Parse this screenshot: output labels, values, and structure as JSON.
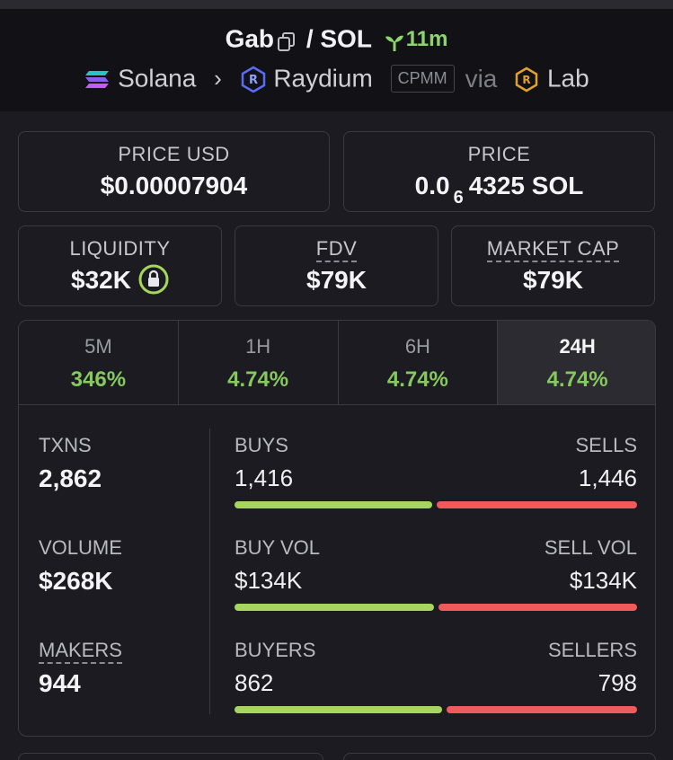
{
  "header": {
    "base_token": "Gab",
    "separator": "/",
    "quote_token": "SOL",
    "age": "11m",
    "chain": "Solana",
    "dex": "Raydium",
    "pool_type": "CPMM",
    "via": "via",
    "launchpad": "Lab"
  },
  "cards": {
    "price_usd_label": "PRICE USD",
    "price_usd_value": "$0.00007904",
    "price_label": "PRICE",
    "price_prefix": "0.0",
    "price_zeros": "6",
    "price_suffix": "4325 SOL",
    "liquidity_label": "LIQUIDITY",
    "liquidity_value": "$32K",
    "fdv_label": "FDV",
    "fdv_value": "$79K",
    "mcap_label": "MARKET CAP",
    "mcap_value": "$79K"
  },
  "tabs": [
    {
      "label": "5M",
      "value": "346%"
    },
    {
      "label": "1H",
      "value": "4.74%"
    },
    {
      "label": "6H",
      "value": "4.74%"
    },
    {
      "label": "24H",
      "value": "4.74%"
    }
  ],
  "active_tab": "24H",
  "stats": {
    "txns_label": "TXNS",
    "txns_value": "2,862",
    "volume_label": "VOLUME",
    "volume_value": "$268K",
    "makers_label": "MAKERS",
    "makers_value": "944",
    "buys_label": "BUYS",
    "buys_value": "1,416",
    "sells_label": "SELLS",
    "sells_value": "1,446",
    "buys_fraction": 0.495,
    "buyvol_label": "BUY VOL",
    "buyvol_value": "$134K",
    "sellvol_label": "SELL VOL",
    "sellvol_value": "$134K",
    "buyvol_fraction": 0.5,
    "buyers_label": "BUYERS",
    "buyers_value": "862",
    "sellers_label": "SELLERS",
    "sellers_value": "798",
    "buyers_fraction": 0.52
  },
  "colors": {
    "green": "#86c95e",
    "buy_bar": "#a6d65d",
    "sell_bar": "#f05a5a",
    "background": "#1b1b21"
  }
}
